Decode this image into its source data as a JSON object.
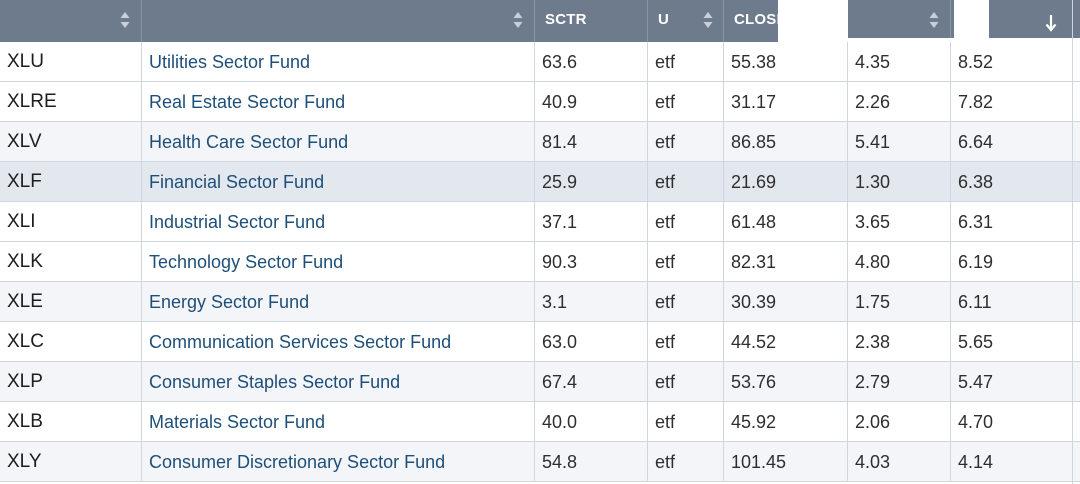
{
  "header": {
    "col_symbol": "",
    "col_name": "",
    "col_sctr": "SCTR",
    "col_u": "U",
    "col_close": "CLOSE",
    "col_chg": "",
    "col_pct": ""
  },
  "rows": [
    {
      "symbol": "XLU",
      "name": "Utilities Sector Fund",
      "sctr": "63.6",
      "u": "etf",
      "close": "55.38",
      "chg": "4.35",
      "pct": "8.52"
    },
    {
      "symbol": "XLRE",
      "name": "Real Estate Sector Fund",
      "sctr": "40.9",
      "u": "etf",
      "close": "31.17",
      "chg": "2.26",
      "pct": "7.82"
    },
    {
      "symbol": "XLV",
      "name": "Health Care Sector Fund",
      "sctr": "81.4",
      "u": "etf",
      "close": "86.85",
      "chg": "5.41",
      "pct": "6.64"
    },
    {
      "symbol": "XLF",
      "name": "Financial Sector Fund",
      "sctr": "25.9",
      "u": "etf",
      "close": "21.69",
      "chg": "1.30",
      "pct": "6.38"
    },
    {
      "symbol": "XLI",
      "name": "Industrial Sector Fund",
      "sctr": "37.1",
      "u": "etf",
      "close": "61.48",
      "chg": "3.65",
      "pct": "6.31"
    },
    {
      "symbol": "XLK",
      "name": "Technology Sector Fund",
      "sctr": "90.3",
      "u": "etf",
      "close": "82.31",
      "chg": "4.80",
      "pct": "6.19"
    },
    {
      "symbol": "XLE",
      "name": "Energy Sector Fund",
      "sctr": "3.1",
      "u": "etf",
      "close": "30.39",
      "chg": "1.75",
      "pct": "6.11"
    },
    {
      "symbol": "XLC",
      "name": "Communication Services Sector Fund",
      "sctr": "63.0",
      "u": "etf",
      "close": "44.52",
      "chg": "2.38",
      "pct": "5.65"
    },
    {
      "symbol": "XLP",
      "name": "Consumer Staples Sector Fund",
      "sctr": "67.4",
      "u": "etf",
      "close": "53.76",
      "chg": "2.79",
      "pct": "5.47"
    },
    {
      "symbol": "XLB",
      "name": "Materials Sector Fund",
      "sctr": "40.0",
      "u": "etf",
      "close": "45.92",
      "chg": "2.06",
      "pct": "4.70"
    },
    {
      "symbol": "XLY",
      "name": "Consumer Discretionary Sector Fund",
      "sctr": "54.8",
      "u": "etf",
      "close": "101.45",
      "chg": "4.03",
      "pct": "4.14"
    }
  ],
  "colors": {
    "header_bg": "#6e7b8d",
    "link_text": "#1d4f7a",
    "row_highlight": "#e3e8ef",
    "grid_line": "#cfd6de"
  },
  "icons": {
    "sort": "sort-up-down-icon",
    "sorted_desc": "arrow-down-icon"
  }
}
